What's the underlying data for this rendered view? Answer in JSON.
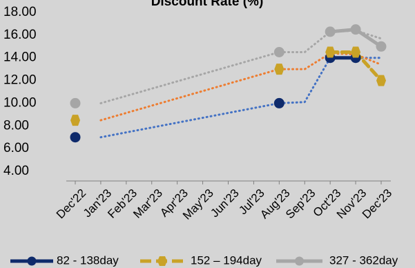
{
  "chart_data": {
    "type": "line",
    "title": "Discount Rate (%)",
    "categories": [
      "Dec'22",
      "Jan'23",
      "Feb'23",
      "Mar'23",
      "Apr'23",
      "May'23",
      "Jun'23",
      "Jul'23",
      "Aug'23",
      "Sep'23",
      "Oct'23",
      "Nov'23",
      "Dec'23"
    ],
    "ylim": [
      4.0,
      18.0
    ],
    "yticks": [
      "4.00",
      "6.00",
      "8.00",
      "10.00",
      "12.00",
      "14.00",
      "16.00",
      "18.00"
    ],
    "grid": false,
    "legend_position": "bottom",
    "series": [
      {
        "name": "82 - 138day",
        "color": "#0e2a6b",
        "trend_color": "#4472c4",
        "values": [
          7.0,
          null,
          null,
          null,
          null,
          null,
          null,
          null,
          10.0,
          null,
          14.0,
          14.0,
          null
        ]
      },
      {
        "name": "152 – 194day",
        "color": "#c9a227",
        "trend_color": "#ed7d31",
        "values": [
          8.5,
          null,
          null,
          null,
          null,
          null,
          null,
          null,
          13.0,
          null,
          14.5,
          14.5,
          12.0
        ]
      },
      {
        "name": "327 - 362day",
        "color": "#a6a6a6",
        "trend_color": "#a6a6a6",
        "values": [
          10.0,
          null,
          null,
          null,
          null,
          null,
          null,
          null,
          14.5,
          null,
          16.3,
          16.5,
          15.0
        ]
      }
    ],
    "trendlines": [
      {
        "series": 0,
        "x": [
          1,
          8,
          9,
          10,
          11,
          12
        ],
        "values": [
          7.0,
          10.0,
          10.1,
          14.0,
          14.0,
          14.0
        ]
      },
      {
        "series": 1,
        "x": [
          1,
          8,
          9,
          10,
          11,
          12
        ],
        "values": [
          8.5,
          13.0,
          13.0,
          14.4,
          14.3,
          13.4
        ]
      },
      {
        "series": 2,
        "x": [
          1,
          8,
          9,
          10,
          11,
          12
        ],
        "values": [
          10.0,
          14.5,
          14.5,
          16.3,
          16.4,
          15.7
        ]
      }
    ]
  }
}
